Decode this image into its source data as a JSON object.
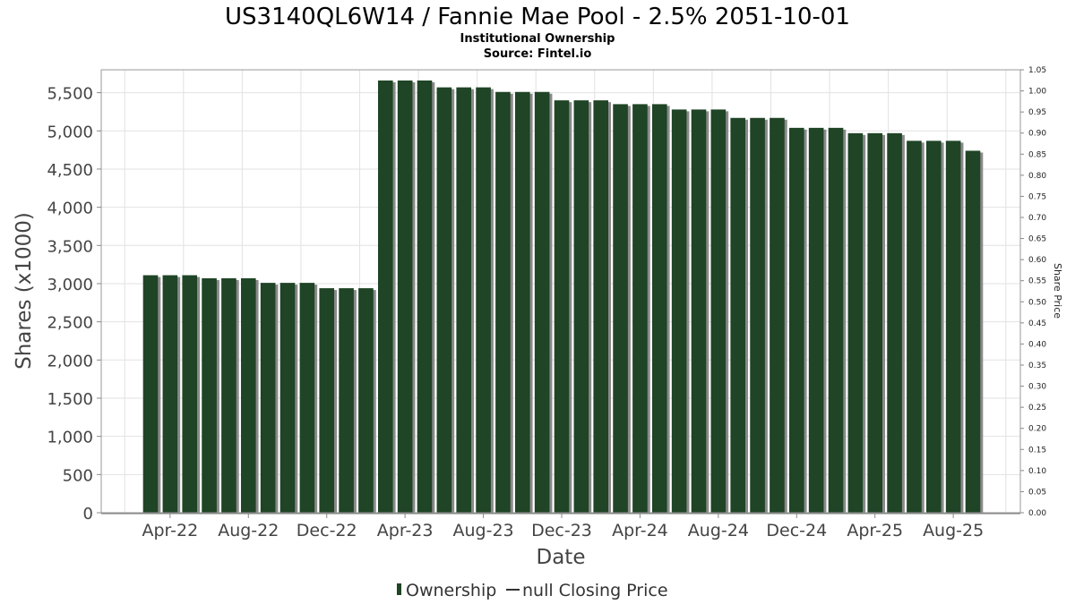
{
  "chart_data": {
    "type": "bar",
    "title": "US3140QL6W14 / Fannie Mae Pool - 2.5% 2051-10-01",
    "subtitle_lines": [
      "Institutional Ownership",
      "Source: Fintel.io"
    ],
    "xlabel": "Date",
    "ylabel": "Shares (x1000)",
    "y2label": "Share Price",
    "ylim": [
      0,
      5800
    ],
    "y2lim": [
      0,
      1.05
    ],
    "yticks": [
      0,
      500,
      1000,
      1500,
      2000,
      2500,
      3000,
      3500,
      4000,
      4500,
      5000,
      5500
    ],
    "yticks_labels": [
      "0",
      "500",
      "1,000",
      "1,500",
      "2,000",
      "2,500",
      "3,000",
      "3,500",
      "4,000",
      "4,500",
      "5,000",
      "5,500"
    ],
    "y2ticks_labels": [
      "0.00",
      "0.05",
      "0.10",
      "0.15",
      "0.20",
      "0.25",
      "0.30",
      "0.35",
      "0.40",
      "0.45",
      "0.50",
      "0.55",
      "0.60",
      "0.65",
      "0.70",
      "0.75",
      "0.80",
      "0.85",
      "0.90",
      "0.95",
      "1.00",
      "1.05"
    ],
    "xticks_labels": [
      "Apr-22",
      "Aug-22",
      "Dec-22",
      "Apr-23",
      "Aug-23",
      "Dec-23",
      "Apr-24",
      "Aug-24",
      "Dec-24",
      "Apr-25",
      "Aug-25"
    ],
    "grid": true,
    "legend_position": "bottom",
    "colors": {
      "bar": "#1f4426",
      "bar_shadow": "#8a8a8a",
      "grid": "#e2e2e2"
    },
    "series": [
      {
        "name": "Ownership",
        "values": [
          3110,
          3110,
          3110,
          3070,
          3070,
          3070,
          3010,
          3010,
          3010,
          2940,
          2940,
          2940,
          5660,
          5660,
          5660,
          5570,
          5570,
          5570,
          5510,
          5510,
          5510,
          5400,
          5400,
          5400,
          5350,
          5350,
          5350,
          5280,
          5280,
          5280,
          5170,
          5170,
          5170,
          5040,
          5040,
          5040,
          4970,
          4970,
          4970,
          4870,
          4870,
          4870,
          4740
        ]
      }
    ],
    "legend": [
      {
        "label": "Ownership",
        "symbol": "bar"
      },
      {
        "label": "null Closing Price",
        "symbol": "line"
      }
    ]
  }
}
